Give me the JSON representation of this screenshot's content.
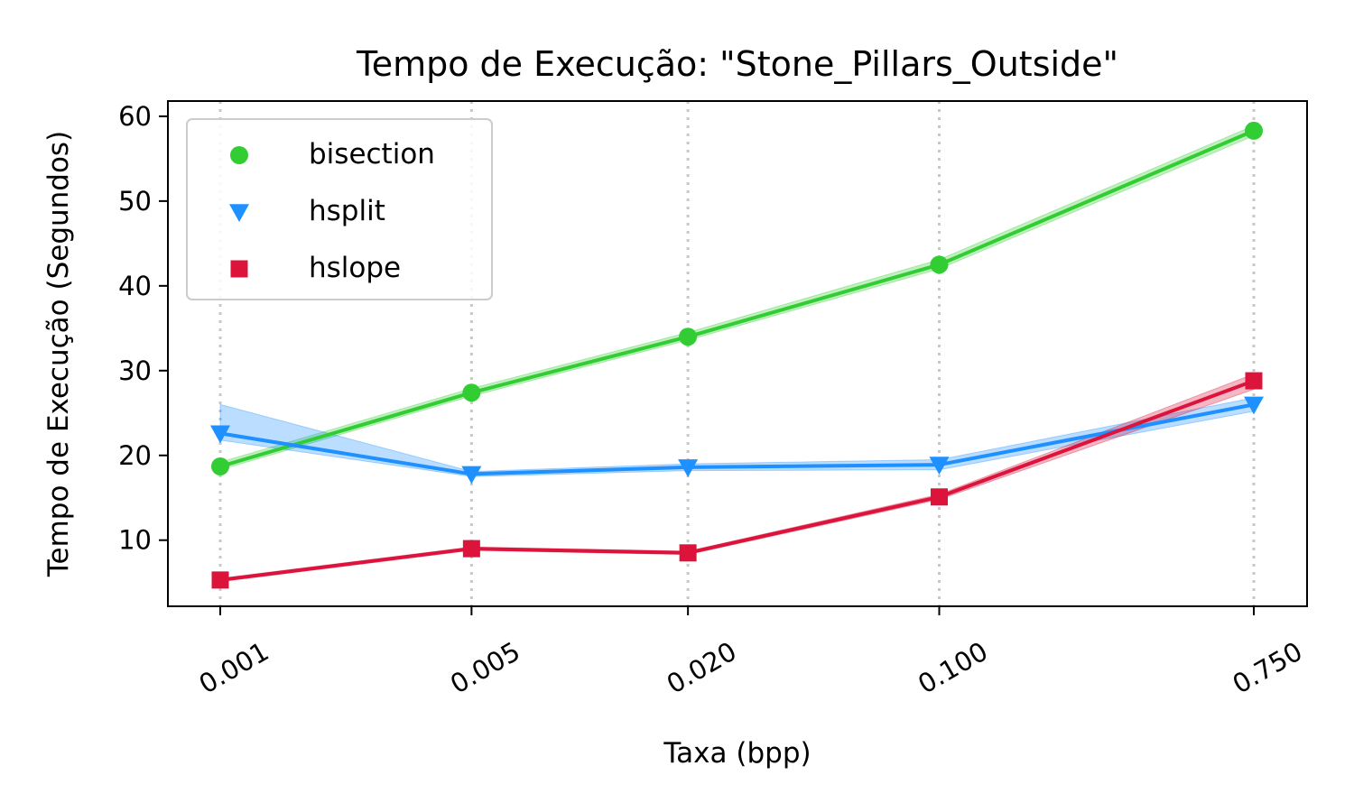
{
  "chart_data": {
    "type": "line",
    "title": "Tempo de Execução: \"Stone_Pillars_Outside\"",
    "xlabel": "Taxa (bpp)",
    "ylabel": "Tempo de Execução (Segundos)",
    "categories": [
      "0.001",
      "0.005",
      "0.020",
      "0.100",
      "0.750"
    ],
    "x_scale": "log",
    "x": [
      0.001,
      0.005,
      0.02,
      0.1,
      0.75
    ],
    "ylim": [
      2.2,
      61.8
    ],
    "yticks": [
      10,
      20,
      30,
      40,
      50,
      60
    ],
    "grid": "vertical-dotted",
    "legend_position": "upper-left",
    "series": [
      {
        "name": "bisection",
        "color": "#32cd32",
        "marker": "circle",
        "values": [
          18.7,
          27.4,
          34.0,
          42.5,
          58.3
        ],
        "band_low": [
          18.3,
          27.0,
          33.6,
          42.0,
          57.7
        ],
        "band_high": [
          19.2,
          27.9,
          34.5,
          43.1,
          58.9
        ]
      },
      {
        "name": "hsplit",
        "color": "#1e90ff",
        "marker": "triangle-down",
        "values": [
          22.6,
          17.8,
          18.6,
          18.9,
          26.0
        ],
        "band_low": [
          21.8,
          17.5,
          18.2,
          18.3,
          25.2
        ],
        "band_high": [
          26.0,
          18.1,
          19.0,
          19.5,
          26.8
        ]
      },
      {
        "name": "hslope",
        "color": "#dc143c",
        "marker": "square",
        "values": [
          5.3,
          9.0,
          8.5,
          15.1,
          28.8
        ],
        "band_low": [
          5.1,
          8.8,
          8.3,
          14.8,
          27.8
        ],
        "band_high": [
          5.5,
          9.2,
          8.7,
          15.4,
          29.6
        ]
      }
    ]
  }
}
